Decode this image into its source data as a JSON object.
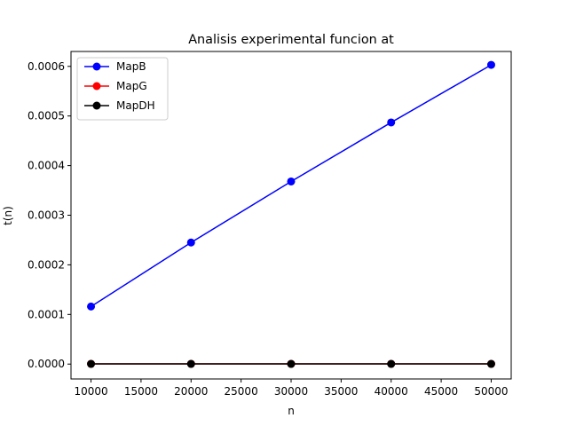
{
  "chart_data": {
    "type": "line",
    "title": "Analisis experimental funcion at",
    "xlabel": "n",
    "ylabel": "t(n)",
    "x": [
      10000,
      20000,
      30000,
      40000,
      50000
    ],
    "xlim": [
      8000,
      52000
    ],
    "ylim": [
      -3e-05,
      0.00063
    ],
    "xticks": [
      10000,
      15000,
      20000,
      25000,
      30000,
      35000,
      40000,
      45000,
      50000
    ],
    "yticks": [
      0.0,
      0.0001,
      0.0002,
      0.0003,
      0.0004,
      0.0005,
      0.0006
    ],
    "xtick_labels": [
      "10000",
      "15000",
      "20000",
      "25000",
      "30000",
      "35000",
      "40000",
      "45000",
      "50000"
    ],
    "ytick_labels": [
      "0.0000",
      "0.0001",
      "0.0002",
      "0.0003",
      "0.0004",
      "0.0005",
      "0.0006"
    ],
    "grid": false,
    "legend_position": "top-left",
    "series": [
      {
        "name": "MapB",
        "color": "#0000ff",
        "marker": "circle",
        "values": [
          0.000116,
          0.000245,
          0.000368,
          0.000487,
          0.000603
        ]
      },
      {
        "name": "MapG",
        "color": "#ff0000",
        "marker": "circle",
        "values": [
          5e-07,
          5e-07,
          5e-07,
          5e-07,
          5e-07
        ]
      },
      {
        "name": "MapDH",
        "color": "#000000",
        "marker": "circle",
        "values": [
          3e-07,
          3e-07,
          3e-07,
          3e-07,
          3e-07
        ]
      }
    ]
  }
}
